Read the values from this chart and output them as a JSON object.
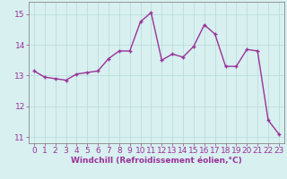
{
  "x": [
    0,
    1,
    2,
    3,
    4,
    5,
    6,
    7,
    8,
    9,
    10,
    11,
    12,
    13,
    14,
    15,
    16,
    17,
    18,
    19,
    20,
    21,
    22,
    23
  ],
  "y": [
    13.15,
    12.95,
    12.9,
    12.85,
    13.05,
    13.1,
    13.15,
    13.55,
    13.8,
    13.8,
    14.75,
    15.05,
    13.5,
    13.7,
    13.6,
    13.95,
    14.65,
    14.35,
    13.3,
    13.3,
    13.85,
    13.8,
    11.55,
    11.1
  ],
  "line_color": "#993399",
  "marker": "+",
  "marker_size": 3,
  "bg_color": "#d8f0f0",
  "grid_color": "#b8d8d8",
  "xlabel": "Windchill (Refroidissement éolien,°C)",
  "ylim": [
    10.8,
    15.4
  ],
  "xlim": [
    -0.5,
    23.5
  ],
  "yticks": [
    11,
    12,
    13,
    14,
    15
  ],
  "xticks": [
    0,
    1,
    2,
    3,
    4,
    5,
    6,
    7,
    8,
    9,
    10,
    11,
    12,
    13,
    14,
    15,
    16,
    17,
    18,
    19,
    20,
    21,
    22,
    23
  ],
  "tick_color": "#993399",
  "xlabel_color": "#993399",
  "xlabel_fontsize": 6.5,
  "tick_fontsize": 6.5,
  "line_width": 1.0,
  "spine_color": "#888888"
}
